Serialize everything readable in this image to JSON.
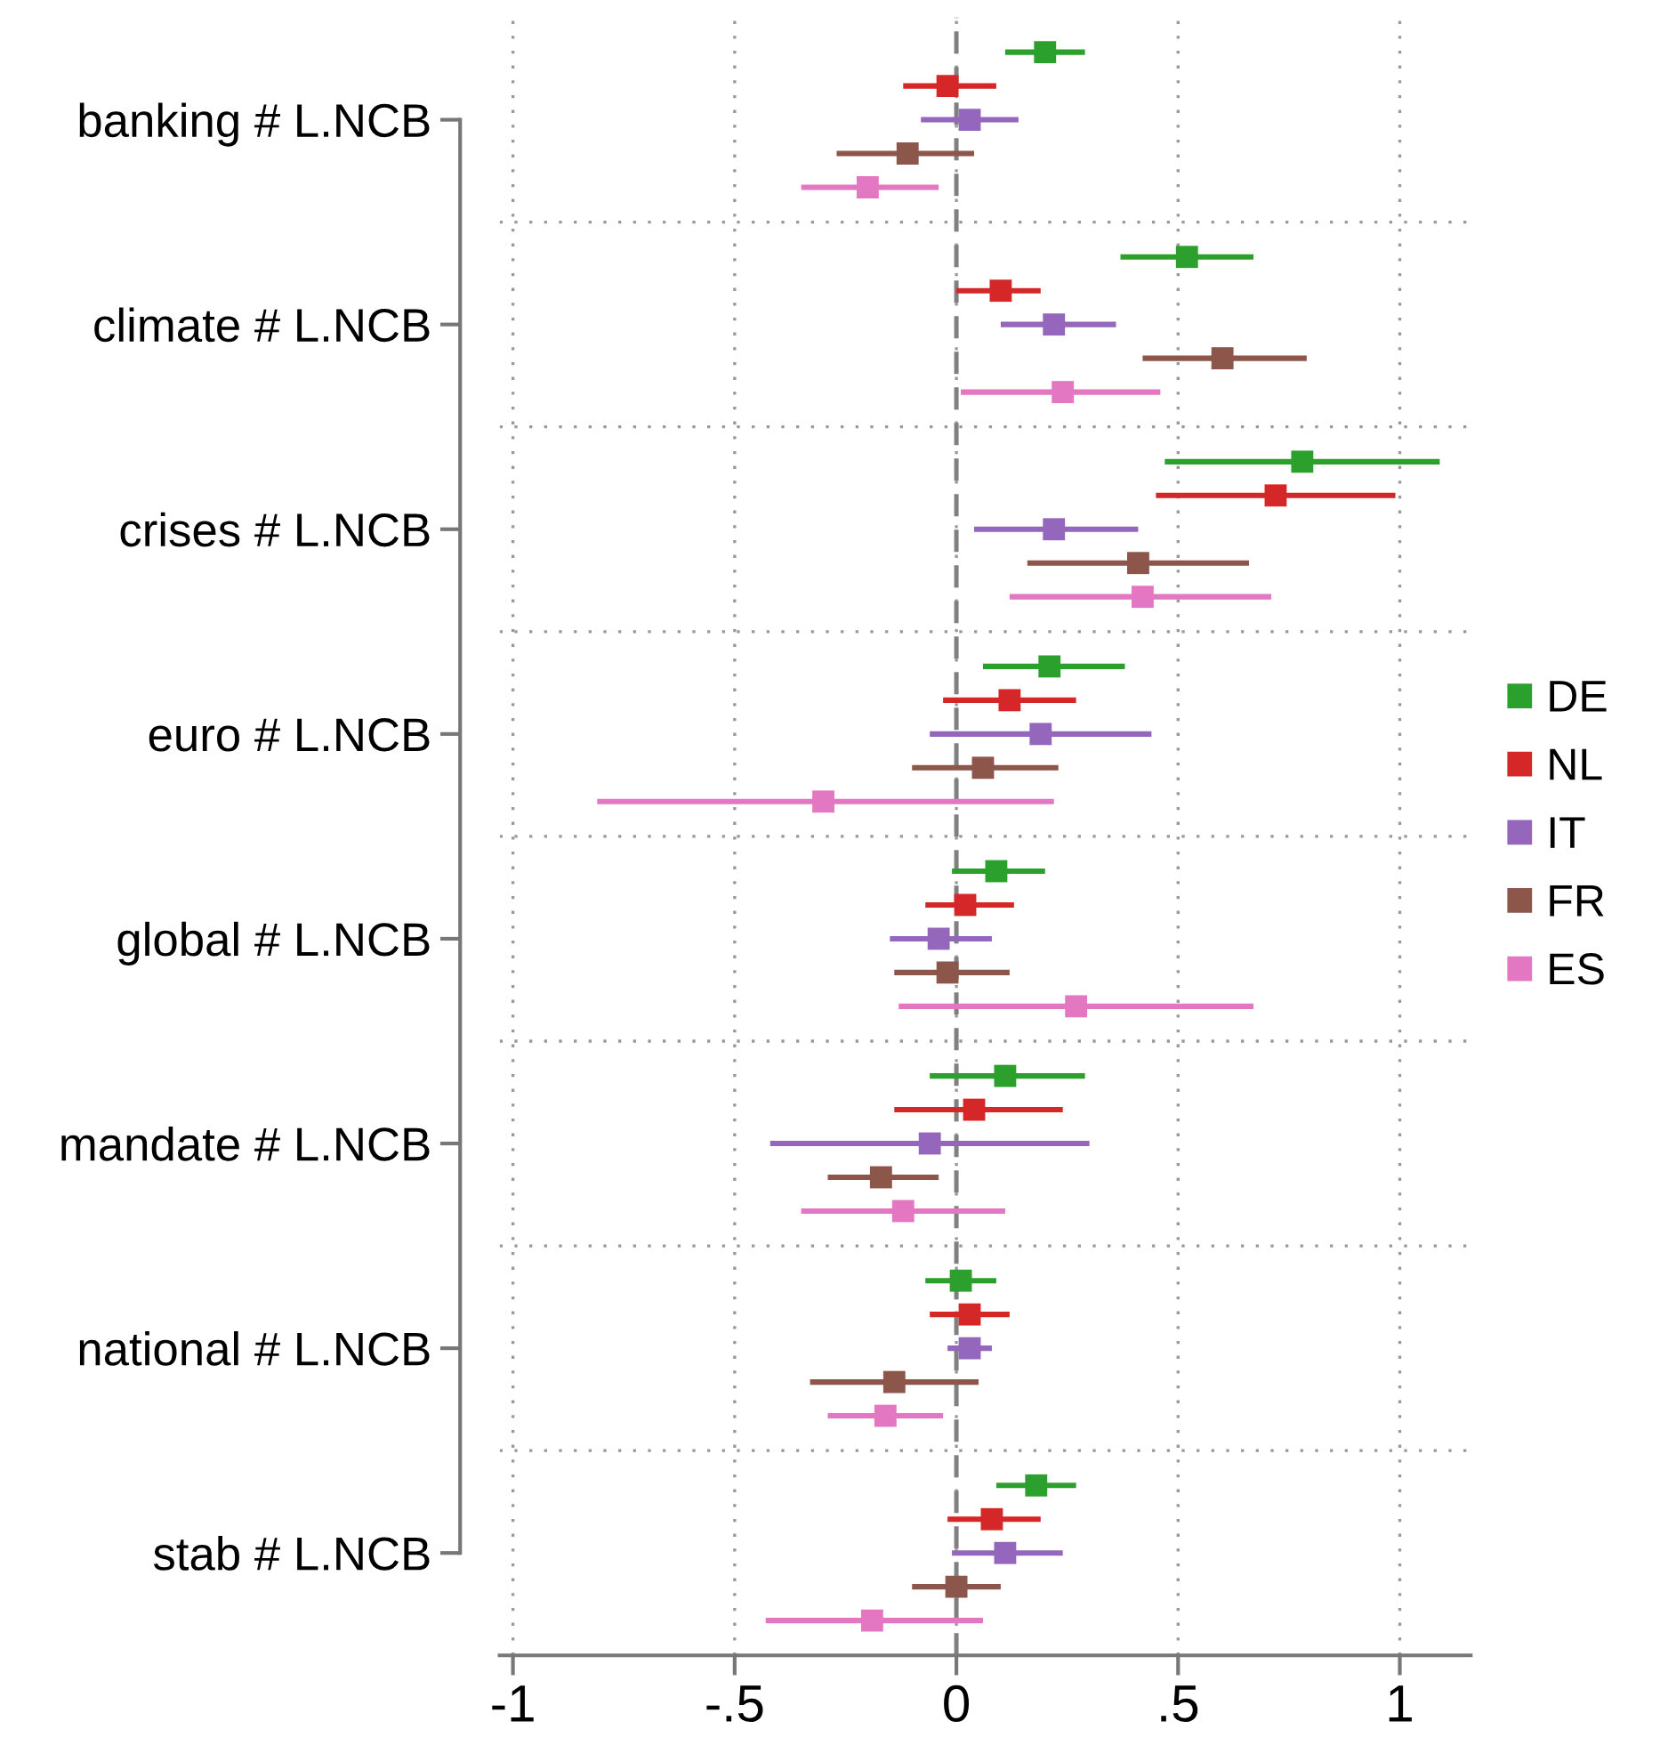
{
  "chart_data": {
    "type": "scatter",
    "orientation": "horizontal",
    "marker": "square",
    "categories": [
      "banking # L.NCB",
      "climate # L.NCB",
      "crises # L.NCB",
      "euro # L.NCB",
      "global # L.NCB",
      "mandate # L.NCB",
      "national # L.NCB",
      "stab # L.NCB"
    ],
    "series": [
      {
        "name": "DE",
        "color": "#2ca02c",
        "values": [
          0.2,
          0.52,
          0.78,
          0.21,
          0.09,
          0.11,
          0.01,
          0.18
        ],
        "errors": [
          [
            0.11,
            0.29
          ],
          [
            0.37,
            0.67
          ],
          [
            0.47,
            1.09
          ],
          [
            0.06,
            0.38
          ],
          [
            -0.01,
            0.2
          ],
          [
            -0.06,
            0.29
          ],
          [
            -0.07,
            0.09
          ],
          [
            0.09,
            0.27
          ]
        ]
      },
      {
        "name": "NL",
        "color": "#d62728",
        "values": [
          -0.02,
          0.1,
          0.72,
          0.12,
          0.02,
          0.04,
          0.03,
          0.08
        ],
        "errors": [
          [
            -0.12,
            0.09
          ],
          [
            0.0,
            0.19
          ],
          [
            0.45,
            0.99
          ],
          [
            -0.03,
            0.27
          ],
          [
            -0.07,
            0.13
          ],
          [
            -0.14,
            0.24
          ],
          [
            -0.06,
            0.12
          ],
          [
            -0.02,
            0.19
          ]
        ]
      },
      {
        "name": "IT",
        "color": "#9467bd",
        "values": [
          0.03,
          0.22,
          0.22,
          0.19,
          -0.04,
          -0.06,
          0.03,
          0.11
        ],
        "errors": [
          [
            -0.08,
            0.14
          ],
          [
            0.1,
            0.36
          ],
          [
            0.04,
            0.41
          ],
          [
            -0.06,
            0.44
          ],
          [
            -0.15,
            0.08
          ],
          [
            -0.42,
            0.3
          ],
          [
            -0.02,
            0.08
          ],
          [
            -0.01,
            0.24
          ]
        ]
      },
      {
        "name": "FR",
        "color": "#8c564b",
        "values": [
          -0.11,
          0.6,
          0.41,
          0.06,
          -0.02,
          -0.17,
          -0.14,
          0.0
        ],
        "errors": [
          [
            -0.27,
            0.04
          ],
          [
            0.42,
            0.79
          ],
          [
            0.16,
            0.66
          ],
          [
            -0.1,
            0.23
          ],
          [
            -0.14,
            0.12
          ],
          [
            -0.29,
            -0.04
          ],
          [
            -0.33,
            0.05
          ],
          [
            -0.1,
            0.1
          ]
        ]
      },
      {
        "name": "ES",
        "color": "#e377c2",
        "values": [
          -0.2,
          0.24,
          0.42,
          -0.3,
          0.27,
          -0.12,
          -0.16,
          -0.19
        ],
        "errors": [
          [
            -0.35,
            -0.04
          ],
          [
            0.01,
            0.46
          ],
          [
            0.12,
            0.71
          ],
          [
            -0.81,
            0.22
          ],
          [
            -0.13,
            0.67
          ],
          [
            -0.35,
            0.11
          ],
          [
            -0.29,
            -0.03
          ],
          [
            -0.43,
            0.06
          ]
        ]
      }
    ],
    "xlim": [
      -1.03,
      1.16
    ],
    "xticks": [
      {
        "value": -1,
        "label": "-1"
      },
      {
        "value": -0.5,
        "label": "-.5"
      },
      {
        "value": 0,
        "label": "0"
      },
      {
        "value": 0.5,
        "label": ".5"
      },
      {
        "value": 1,
        "label": "1"
      }
    ],
    "ref_lines": [
      {
        "axis": "x",
        "value": 0,
        "color": "#808080",
        "line_style": "dashed"
      }
    ],
    "grid": true,
    "legend": "right"
  }
}
